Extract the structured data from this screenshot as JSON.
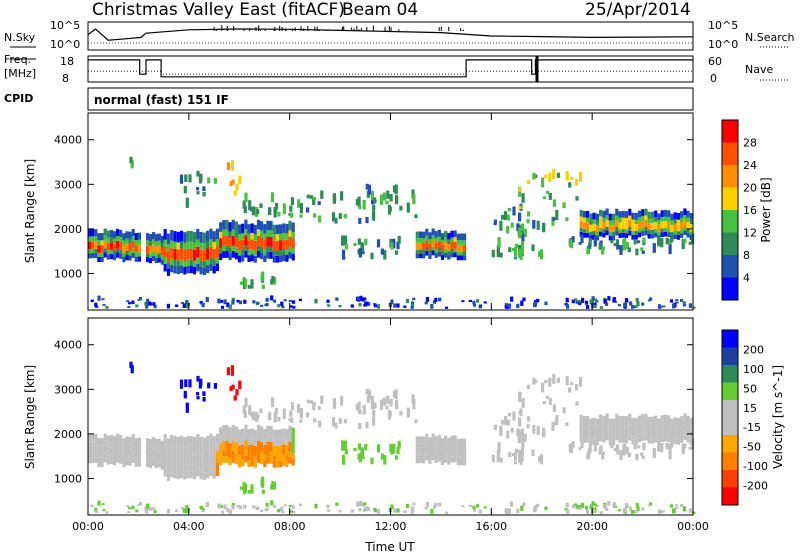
{
  "header": {
    "title": "Christmas Valley East (fitACF)",
    "beam": "Beam 04",
    "date": "25/Apr/2014"
  },
  "top_panels": {
    "nsky_label": "N.Sky",
    "nsearch_label": "N.Search",
    "noise_ticks": [
      "10^5",
      "10^0"
    ],
    "freq_label": "Freq.",
    "freq_unit": "[MHz]",
    "freq_ticks": [
      "18",
      "8"
    ],
    "nave_label": "Nave",
    "nave_ticks": [
      "60",
      "0"
    ],
    "cpid_label": "CPID",
    "cpid_value": "normal (fast) 151 IF"
  },
  "colors": {
    "power_scale": [
      "#0000ff",
      "#2050b0",
      "#2e8b57",
      "#48c040",
      "#ffd000",
      "#ff9000",
      "#ff5000",
      "#ff0000"
    ],
    "velocity_scale": [
      "#ff0000",
      "#ff4000",
      "#ff8000",
      "#ffa500",
      "#c0c0c0",
      "#c0c0c0",
      "#66cc33",
      "#2e8b57",
      "#2040a0",
      "#0000ff"
    ],
    "ground_scatter": "#c0c0c0"
  },
  "chart_data": [
    {
      "type": "heatmap",
      "quantity": "Power",
      "xlabel": "Time UT",
      "ylabel": "Slant Range [km]",
      "colorbar_label": "Power [dB]",
      "colorbar_ticks": [
        "4",
        "8",
        "12",
        "16",
        "20",
        "24",
        "28"
      ],
      "ylim_km": [
        180,
        4600
      ],
      "y_ticks": [
        "1000",
        "2000",
        "3000",
        "4000"
      ],
      "x_ticks": [
        "00:00",
        "04:00",
        "08:00",
        "12:00",
        "16:00",
        "20:00",
        "00:00"
      ],
      "xlim_hours": [
        0,
        24
      ],
      "bands": [
        {
          "t0": 0.0,
          "t1": 2.1,
          "r0": 1300,
          "r1": 1950,
          "core": 26
        },
        {
          "t0": 2.3,
          "t1": 3.0,
          "r0": 1250,
          "r1": 1900,
          "core": 24
        },
        {
          "t0": 3.0,
          "t1": 5.2,
          "r0": 1000,
          "r1": 1950,
          "core": 27
        },
        {
          "t0": 5.2,
          "t1": 8.2,
          "r0": 1300,
          "r1": 2150,
          "core": 26
        },
        {
          "t0": 13.0,
          "t1": 15.0,
          "r0": 1350,
          "r1": 1950,
          "core": 24
        },
        {
          "t0": 19.5,
          "t1": 24.0,
          "r0": 1800,
          "r1": 2400,
          "core": 20
        }
      ]
    },
    {
      "type": "heatmap",
      "quantity": "Velocity",
      "xlabel": "Time UT",
      "ylabel": "Slant Range [km]",
      "colorbar_label": "Velocity [m s^-1]",
      "colorbar_ticks": [
        "200",
        "100",
        "50",
        "15",
        "-15",
        "-50",
        "-100",
        "-200"
      ],
      "ylim_km": [
        180,
        4600
      ],
      "y_ticks": [
        "1000",
        "2000",
        "3000",
        "4000"
      ],
      "x_ticks": [
        "00:00",
        "04:00",
        "08:00",
        "12:00",
        "16:00",
        "20:00",
        "00:00"
      ],
      "xlim_hours": [
        0,
        24
      ]
    }
  ],
  "line_data": {
    "nsky_hours": [
      0.0,
      0.3,
      0.8,
      1.5,
      2.1,
      2.3,
      4.0,
      6.0,
      8.0,
      10.0,
      12.0,
      14.0,
      16.0,
      18.0,
      20.0,
      22.0,
      24.0
    ],
    "nsky_frac": [
      0.55,
      0.75,
      0.35,
      0.4,
      0.45,
      0.6,
      0.72,
      0.75,
      0.74,
      0.7,
      0.66,
      0.62,
      0.5,
      0.48,
      0.45,
      0.46,
      0.47
    ],
    "freq_segments": [
      {
        "t0": 0.0,
        "t1": 2.05,
        "mhz": 16.5
      },
      {
        "t0": 2.05,
        "t1": 2.3,
        "mhz": 11.0
      },
      {
        "t0": 2.3,
        "t1": 2.9,
        "mhz": 16.5
      },
      {
        "t0": 2.9,
        "t1": 15.0,
        "mhz": 10.0
      },
      {
        "t0": 15.0,
        "t1": 17.6,
        "mhz": 16.5
      },
      {
        "t0": 17.6,
        "t1": 17.75,
        "mhz": 11.0
      },
      {
        "t0": 17.75,
        "t1": 24.0,
        "mhz": 16.5
      }
    ],
    "nave_segments": [
      {
        "t0": 0.0,
        "t1": 2.9,
        "value": 25
      },
      {
        "t0": 2.9,
        "t1": 15.0,
        "value": 18
      },
      {
        "t0": 15.0,
        "t1": 24.0,
        "value": 25
      }
    ]
  }
}
